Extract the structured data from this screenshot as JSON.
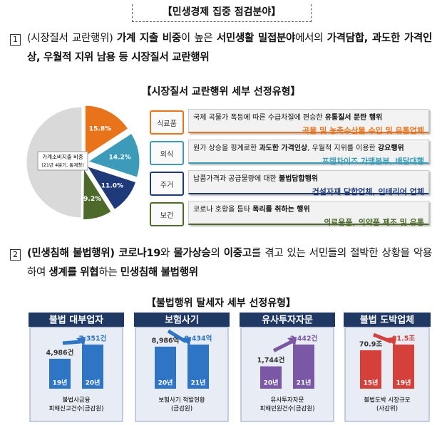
{
  "header": {
    "title": "【민생경제 집중 점검분야】"
  },
  "sections": [
    {
      "number": "1",
      "runs": [
        {
          "text": "(시장질서 교란행위) ",
          "bold": false
        },
        {
          "text": "가계 지출 비중",
          "bold": true
        },
        {
          "text": "이 높은 ",
          "bold": false
        },
        {
          "text": "서민생활 밀접분야",
          "bold": true
        },
        {
          "text": "에서의 ",
          "bold": false
        },
        {
          "text": "가격담합, 과도한 가격인상, 우월적 지위 남용 등 시장질서 교란행위",
          "bold": true
        }
      ]
    },
    {
      "number": "2",
      "runs": [
        {
          "text": "(민생침해 불법행위) 코로나19",
          "bold": true
        },
        {
          "text": "와 ",
          "bold": false
        },
        {
          "text": "물가상승",
          "bold": true
        },
        {
          "text": "의 ",
          "bold": false
        },
        {
          "text": "이중고",
          "bold": true
        },
        {
          "text": "를 겪고 있는 서민들의 절박한 상황을 악용하여 ",
          "bold": false
        },
        {
          "text": "생계를 위협",
          "bold": true
        },
        {
          "text": "하는 ",
          "bold": false
        },
        {
          "text": "민생침해 불법행위",
          "bold": true
        }
      ]
    }
  ],
  "market": {
    "subtitle": "【시장질서 교란행위 세부 선정유형】",
    "pie": {
      "type": "pie",
      "label": "가계소비지출 비중",
      "sublabel": "(21년 4분기, 통계청)",
      "values": [
        15.8,
        14.2,
        11.0,
        9.2,
        49.8
      ],
      "value_labels": [
        "15.8%",
        "14.2%",
        "11.0%",
        "9.2%",
        null
      ],
      "colors": [
        "#e8731a",
        "#3b9bb9",
        "#1f3a7a",
        "#4d6a2b",
        "#d9d9d9"
      ]
    },
    "rows": [
      {
        "tag": "식료품",
        "color": "#e8731a",
        "runs": [
          {
            "text": "국제 곡물가 폭등에 따른 수급차질에 편승한 ",
            "bold": false
          },
          {
            "text": "유통질서 문란 행위",
            "bold": true
          }
        ],
        "targets": "곡물 및 농축수산물 수입 및 유통업체"
      },
      {
        "tag": "외식",
        "color": "#3b9bb9",
        "runs": [
          {
            "text": "원가 상승을 핑계로한 ",
            "bold": false
          },
          {
            "text": "과도한 가격인상",
            "bold": true
          },
          {
            "text": ", 우월적 지위를 이용한 ",
            "bold": false
          },
          {
            "text": "강요행위",
            "bold": true
          }
        ],
        "targets": "프랜차이즈 가맹본부, 배달대행"
      },
      {
        "tag": "주거",
        "color": "#1f3a7a",
        "runs": [
          {
            "text": "납품가격과 공급물량에 대한 ",
            "bold": false
          },
          {
            "text": "불법담합행위",
            "bold": true
          }
        ],
        "targets": "건설자재 담합업체, 인테리어 업체"
      },
      {
        "tag": "보건",
        "color": "#4d6a2b",
        "runs": [
          {
            "text": "코로나 호황을 틈타 ",
            "bold": false
          },
          {
            "text": "폭리를 취하는 행위",
            "bold": true
          }
        ],
        "targets": "의료용품, 의약품 제조 및 유통"
      }
    ]
  },
  "tax": {
    "subtitle": "【불법행위 탈세자 세부 선정유형】",
    "panels": [
      {
        "type": "bar",
        "title": "불법 대부업자",
        "color": "#2e75c6",
        "categories": [
          "19년",
          "20년"
        ],
        "values": [
          4986,
          7351
        ],
        "value_labels": [
          "4,986건",
          "7,351건"
        ],
        "caption": [
          "불법사금융",
          "피해신고건수(금감원)"
        ]
      },
      {
        "type": "bar",
        "title": "보험사기",
        "color": "#2e75c6",
        "categories": [
          "20년",
          "21년"
        ],
        "values": [
          8986,
          9434
        ],
        "value_labels": [
          "8,986억",
          "9,434억"
        ],
        "caption": [
          "보험사기 적발현황",
          "(금감원)"
        ]
      },
      {
        "type": "bar",
        "title": "유사투자자문",
        "color": "#7a58a6",
        "categories": [
          "20년",
          "21년"
        ],
        "values": [
          1744,
          3442
        ],
        "value_labels": [
          "1,744건",
          "3,442건"
        ],
        "caption": [
          "유사투자자문",
          "피해민원건수(금감원)"
        ]
      },
      {
        "type": "bar",
        "title": "불법 도박업체",
        "color": "#d6403a",
        "categories": [
          "15년",
          "19년"
        ],
        "values": [
          70.9,
          81.5
        ],
        "value_labels": [
          "70.9조",
          "81.5조"
        ],
        "caption": [
          "불법도박 시장규모",
          "(사감위)"
        ]
      }
    ]
  }
}
